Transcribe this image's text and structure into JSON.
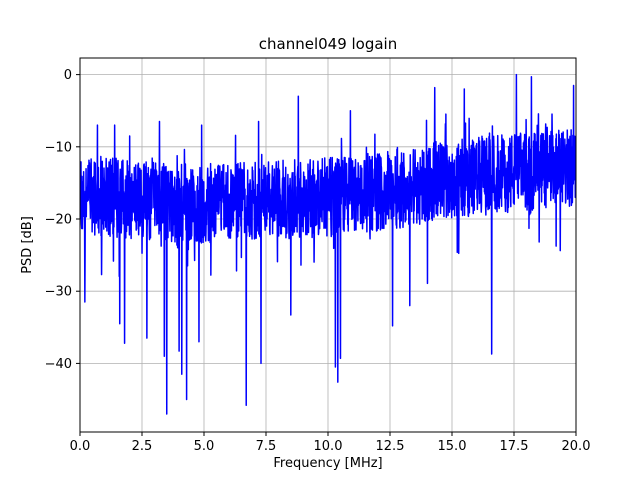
{
  "chart_data": {
    "type": "line",
    "title": "channel049 logain",
    "xlabel": "Frequency [MHz]",
    "ylabel": "PSD [dB]",
    "xlim": [
      0,
      20
    ],
    "ylim": [
      -49.5,
      2.3
    ],
    "xticks": [
      0,
      2.5,
      5,
      7.5,
      10,
      12.5,
      15,
      17.5,
      20
    ],
    "xtick_labels": [
      "0.0",
      "2.5",
      "5.0",
      "7.5",
      "10.0",
      "12.5",
      "15.0",
      "17.5",
      "20.0"
    ],
    "yticks": [
      -40,
      -30,
      -20,
      -10,
      0
    ],
    "ytick_labels": [
      "−40",
      "−30",
      "−20",
      "−10",
      "0"
    ],
    "grid": true,
    "series": [
      {
        "color": "#0000ff",
        "trend_x": [
          0,
          2.5,
          5,
          7.5,
          10,
          12.5,
          15,
          17.5,
          20
        ],
        "trend_mean": [
          -16.5,
          -17.5,
          -18,
          -17.5,
          -17,
          -16,
          -14.5,
          -13.5,
          -13
        ],
        "notable_min": [
          {
            "x": 0.2,
            "y": -31.5
          },
          {
            "x": 1.6,
            "y": -34.5
          },
          {
            "x": 1.8,
            "y": -37.2
          },
          {
            "x": 2.7,
            "y": -36.5
          },
          {
            "x": 3.4,
            "y": -39
          },
          {
            "x": 3.5,
            "y": -47
          },
          {
            "x": 4.0,
            "y": -38.3
          },
          {
            "x": 4.1,
            "y": -41.5
          },
          {
            "x": 4.3,
            "y": -45
          },
          {
            "x": 4.8,
            "y": -37
          },
          {
            "x": 6.7,
            "y": -45.8
          },
          {
            "x": 7.3,
            "y": -40
          },
          {
            "x": 8.5,
            "y": -33.3
          },
          {
            "x": 10.3,
            "y": -40.5
          },
          {
            "x": 10.4,
            "y": -42.6
          },
          {
            "x": 10.5,
            "y": -39.3
          },
          {
            "x": 12.6,
            "y": -34.8
          },
          {
            "x": 13.3,
            "y": -32
          },
          {
            "x": 16.6,
            "y": -38.7
          }
        ],
        "notable_max": [
          {
            "x": 0.7,
            "y": -7
          },
          {
            "x": 1.4,
            "y": -7
          },
          {
            "x": 2.0,
            "y": -8.5
          },
          {
            "x": 3.2,
            "y": -6.5
          },
          {
            "x": 4.9,
            "y": -7
          },
          {
            "x": 7.2,
            "y": -6.5
          },
          {
            "x": 8.8,
            "y": -3
          },
          {
            "x": 10.9,
            "y": -5
          },
          {
            "x": 14.3,
            "y": -1.8
          },
          {
            "x": 15.5,
            "y": -2
          },
          {
            "x": 17.6,
            "y": 0
          },
          {
            "x": 18.2,
            "y": -0.3
          },
          {
            "x": 19.9,
            "y": -1.5
          }
        ]
      }
    ]
  }
}
